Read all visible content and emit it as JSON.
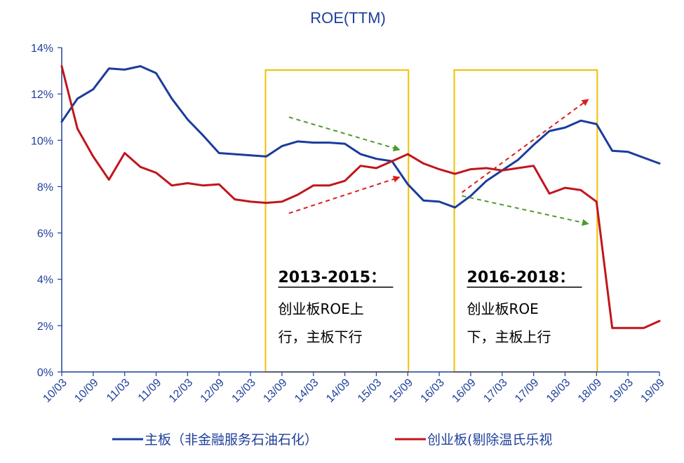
{
  "chart_data": {
    "type": "line",
    "title": "ROE(TTM)",
    "x": [
      "10/03",
      "10/06",
      "10/09",
      "10/12",
      "11/03",
      "11/06",
      "11/09",
      "11/12",
      "12/03",
      "12/06",
      "12/09",
      "12/12",
      "13/03",
      "13/06",
      "13/09",
      "13/12",
      "14/03",
      "14/06",
      "14/09",
      "14/12",
      "15/03",
      "15/06",
      "15/09",
      "15/12",
      "16/03",
      "16/06",
      "16/09",
      "16/12",
      "17/03",
      "17/06",
      "17/09",
      "17/12",
      "18/03",
      "18/06",
      "18/09",
      "18/12",
      "19/03",
      "19/06",
      "19/09"
    ],
    "tick_labels": [
      "10/03",
      "10/09",
      "11/03",
      "11/09",
      "12/03",
      "12/09",
      "13/03",
      "13/09",
      "14/03",
      "14/09",
      "15/03",
      "15/09",
      "16/03",
      "16/09",
      "17/03",
      "17/09",
      "18/03",
      "18/09",
      "19/03",
      "19/09"
    ],
    "ylim": [
      0,
      14
    ],
    "y_ticks": [
      "0%",
      "2%",
      "4%",
      "6%",
      "8%",
      "10%",
      "12%",
      "14%"
    ],
    "xlabel": "",
    "ylabel": "",
    "series": [
      {
        "name": "主板（非金融服务石油石化）",
        "color": "#1a3c9c",
        "values": [
          10.8,
          11.8,
          12.2,
          13.1,
          13.05,
          13.2,
          12.9,
          11.8,
          10.9,
          10.2,
          9.45,
          9.4,
          9.35,
          9.3,
          9.75,
          9.95,
          9.9,
          9.9,
          9.85,
          9.4,
          9.2,
          9.1,
          8.1,
          7.4,
          7.35,
          7.1,
          7.6,
          8.25,
          8.7,
          9.15,
          9.8,
          10.4,
          10.55,
          10.85,
          10.7,
          9.55,
          9.5,
          9.25,
          9.0
        ]
      },
      {
        "name": "创业板(剔除温氏乐视",
        "color": "#c0161c",
        "values": [
          13.2,
          10.5,
          9.3,
          8.3,
          9.45,
          8.85,
          8.6,
          8.05,
          8.15,
          8.05,
          8.1,
          7.45,
          7.35,
          7.3,
          7.35,
          7.65,
          8.05,
          8.05,
          8.25,
          8.9,
          8.8,
          9.1,
          9.4,
          9.0,
          8.75,
          8.55,
          8.75,
          8.8,
          8.7,
          8.8,
          8.9,
          7.7,
          7.95,
          7.85,
          7.35,
          1.9,
          1.9,
          1.9,
          2.2
        ]
      }
    ],
    "grid": false,
    "legend": "bottom",
    "annotations": [
      {
        "heading": "2013-2015：",
        "lines": [
          "创业板ROE上",
          "行，主板下行"
        ],
        "x_from": "13/06",
        "x_to": "15/09"
      },
      {
        "heading": "2016-2018：",
        "lines": [
          "创业板ROE",
          "下，主板上行"
        ],
        "x_from": "16/06",
        "x_to": "18/09"
      }
    ],
    "arrows": [
      {
        "kind": "green-dashed",
        "from": [
          "13/09",
          11.0
        ],
        "to": [
          "15/06",
          9.6
        ]
      },
      {
        "kind": "red-dashed",
        "from": [
          "13/09",
          6.85
        ],
        "to": [
          "15/06",
          8.4
        ]
      },
      {
        "kind": "red-dashed",
        "from": [
          "16/06",
          7.75
        ],
        "to": [
          "18/06",
          11.75
        ]
      },
      {
        "kind": "green-dashed",
        "from": [
          "16/06",
          7.6
        ],
        "to": [
          "18/06",
          6.4
        ]
      }
    ],
    "colors": {
      "axis": "#1f3f9a",
      "box": "#f2c000",
      "arrow_green": "#4e9a2e",
      "arrow_red": "#d6201e"
    }
  }
}
